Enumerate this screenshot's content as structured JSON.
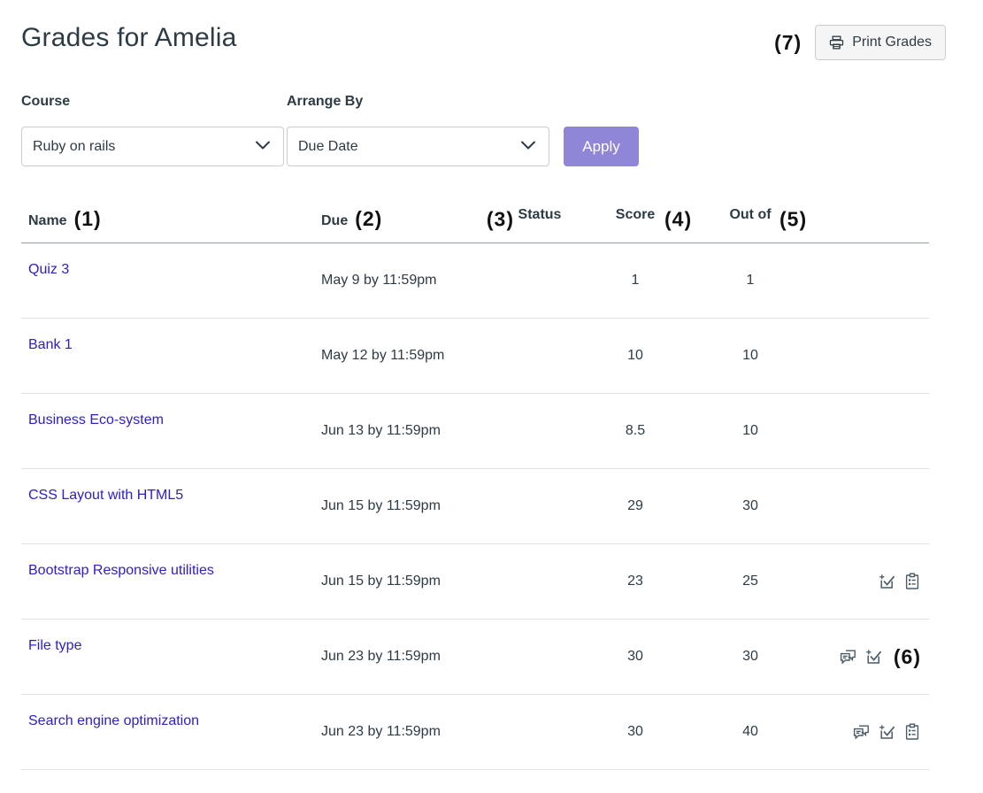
{
  "page": {
    "title": "Grades for Amelia"
  },
  "annotations": {
    "a1": "(1)",
    "a2": "(2)",
    "a3": "(3)",
    "a4": "(4)",
    "a5": "(5)",
    "a6": "(6)",
    "a7": "(7)"
  },
  "toolbar": {
    "print_label": "Print Grades",
    "print_icon": "printer-icon"
  },
  "filters": {
    "course": {
      "label": "Course",
      "value": "Ruby on rails",
      "icon": "chevron-down-icon"
    },
    "arrange_by": {
      "label": "Arrange By",
      "value": "Due Date",
      "icon": "chevron-down-icon"
    },
    "apply_label": "Apply"
  },
  "table": {
    "headers": {
      "name": "Name",
      "due": "Due",
      "status": "Status",
      "score": "Score",
      "out_of": "Out of"
    },
    "rows": [
      {
        "name": "Quiz 3",
        "due": "May 9 by 11:59pm",
        "status": "",
        "score": "1",
        "out_of": "1",
        "icons": []
      },
      {
        "name": "Bank 1",
        "due": "May 12 by 11:59pm",
        "status": "",
        "score": "10",
        "out_of": "10",
        "icons": []
      },
      {
        "name": "Business Eco-system",
        "due": "Jun 13 by 11:59pm",
        "status": "",
        "score": "8.5",
        "out_of": "10",
        "icons": []
      },
      {
        "name": "CSS Layout with HTML5",
        "due": "Jun 15 by 11:59pm",
        "status": "",
        "score": "29",
        "out_of": "30",
        "icons": []
      },
      {
        "name": "Bootstrap Responsive utilities",
        "due": "Jun 15 by 11:59pm",
        "status": "",
        "score": "23",
        "out_of": "25",
        "icons": [
          "check-plus-icon",
          "rubric-icon"
        ]
      },
      {
        "name": "File type",
        "due": "Jun 23 by 11:59pm",
        "status": "",
        "score": "30",
        "out_of": "30",
        "icons": [
          "comments-icon",
          "check-plus-icon"
        ],
        "annotation": "(6)"
      },
      {
        "name": "Search engine optimization",
        "due": "Jun 23 by 11:59pm",
        "status": "",
        "score": "30",
        "out_of": "40",
        "icons": [
          "comments-icon",
          "check-plus-icon",
          "rubric-icon"
        ]
      }
    ]
  },
  "colors": {
    "text": "#2D3B45",
    "link": "#2D20C8",
    "apply_button": "#8F86D8",
    "print_button_bg": "#f5f5f5",
    "border_light": "#DDE2E5",
    "border_dark": "#96A0A8",
    "icon": "#4A5B68",
    "annotation": "#111111"
  }
}
